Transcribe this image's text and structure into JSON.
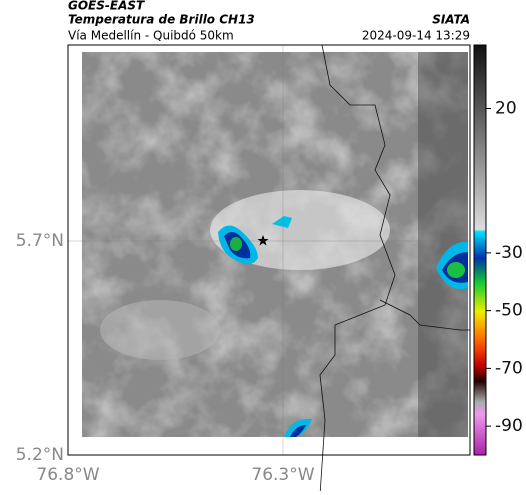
{
  "header": {
    "source": "GOES-EAST",
    "title": "Temperatura de Brillo CH13",
    "subtitle": "Vía Medellín - Quibdó 50km",
    "org": "SIATA",
    "datetime": "2024-09-14 13:29"
  },
  "map": {
    "lon_lim": [
      -76.8,
      -75.865
    ],
    "lat_lim": [
      5.2,
      6.158
    ],
    "lon_ticks": [
      {
        "value": -76.8,
        "label": "76.8°W"
      },
      {
        "value": -76.3,
        "label": "76.3°W"
      }
    ],
    "lat_ticks": [
      {
        "value": 5.7,
        "label": "5.7°N"
      },
      {
        "value": 5.2,
        "label": "5.2°N"
      }
    ]
  },
  "colorbar": {
    "lim": [
      -100,
      42
    ],
    "ticks": [
      20,
      -30,
      -50,
      -70,
      -90
    ]
  }
}
